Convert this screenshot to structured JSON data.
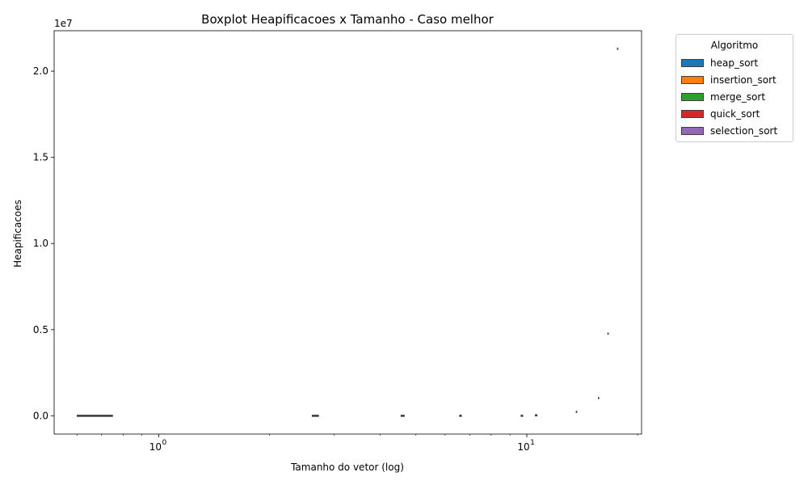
{
  "chart_data": {
    "type": "boxplot",
    "title": "Boxplot Heapificacoes x Tamanho - Caso melhor",
    "xlabel": "Tamanho do vetor (log)",
    "ylabel": "Heapificacoes",
    "xscale": "log",
    "offset_label": "1e7",
    "xlim": [
      0.52,
      20.5
    ],
    "ylim": [
      -1.06,
      22.35
    ],
    "x_major_ticks": [
      {
        "value": 1,
        "label_base": "10",
        "label_exp": "0"
      },
      {
        "value": 10,
        "label_base": "10",
        "label_exp": "1"
      }
    ],
    "x_minor_ticks": [
      0.6,
      0.7,
      0.8,
      0.9,
      2,
      3,
      4,
      5,
      6,
      7,
      8,
      9,
      20
    ],
    "y_ticks": [
      {
        "value": 0,
        "label": "0.0"
      },
      {
        "value": 5,
        "label": "0.5"
      },
      {
        "value": 10,
        "label": "1.0"
      },
      {
        "value": 15,
        "label": "1.5"
      },
      {
        "value": 20,
        "label": "2.0"
      }
    ],
    "boxes": [
      {
        "x_from": 0.6,
        "x_to": 0.75,
        "value": 0.0
      },
      {
        "x_from": 2.61,
        "x_to": 2.72,
        "value": 0.0
      },
      {
        "x_from": 4.55,
        "x_to": 4.65,
        "value": 0.0
      },
      {
        "x_from": 6.56,
        "x_to": 6.65,
        "value": 0.0
      },
      {
        "x_from": 9.64,
        "x_to": 9.76,
        "value": 0.0
      },
      {
        "x_from": 10.54,
        "x_to": 10.67,
        "value": 0.03
      },
      {
        "x_from": 13.61,
        "x_to": 13.69,
        "value": 0.23
      },
      {
        "x_from": 15.63,
        "x_to": 15.71,
        "value": 1.03
      },
      {
        "x_from": 16.58,
        "x_to": 16.66,
        "value": 4.77
      },
      {
        "x_from": 17.61,
        "x_to": 17.69,
        "value": 21.3
      }
    ],
    "legend": {
      "title": "Algoritmo",
      "placement": "outside-top-right",
      "entries": [
        {
          "label": "heap_sort",
          "color": "#1f77b4"
        },
        {
          "label": "insertion_sort",
          "color": "#ff7f0e"
        },
        {
          "label": "merge_sort",
          "color": "#2ca02c"
        },
        {
          "label": "quick_sort",
          "color": "#d62728"
        },
        {
          "label": "selection_sort",
          "color": "#9467bd"
        }
      ]
    }
  }
}
